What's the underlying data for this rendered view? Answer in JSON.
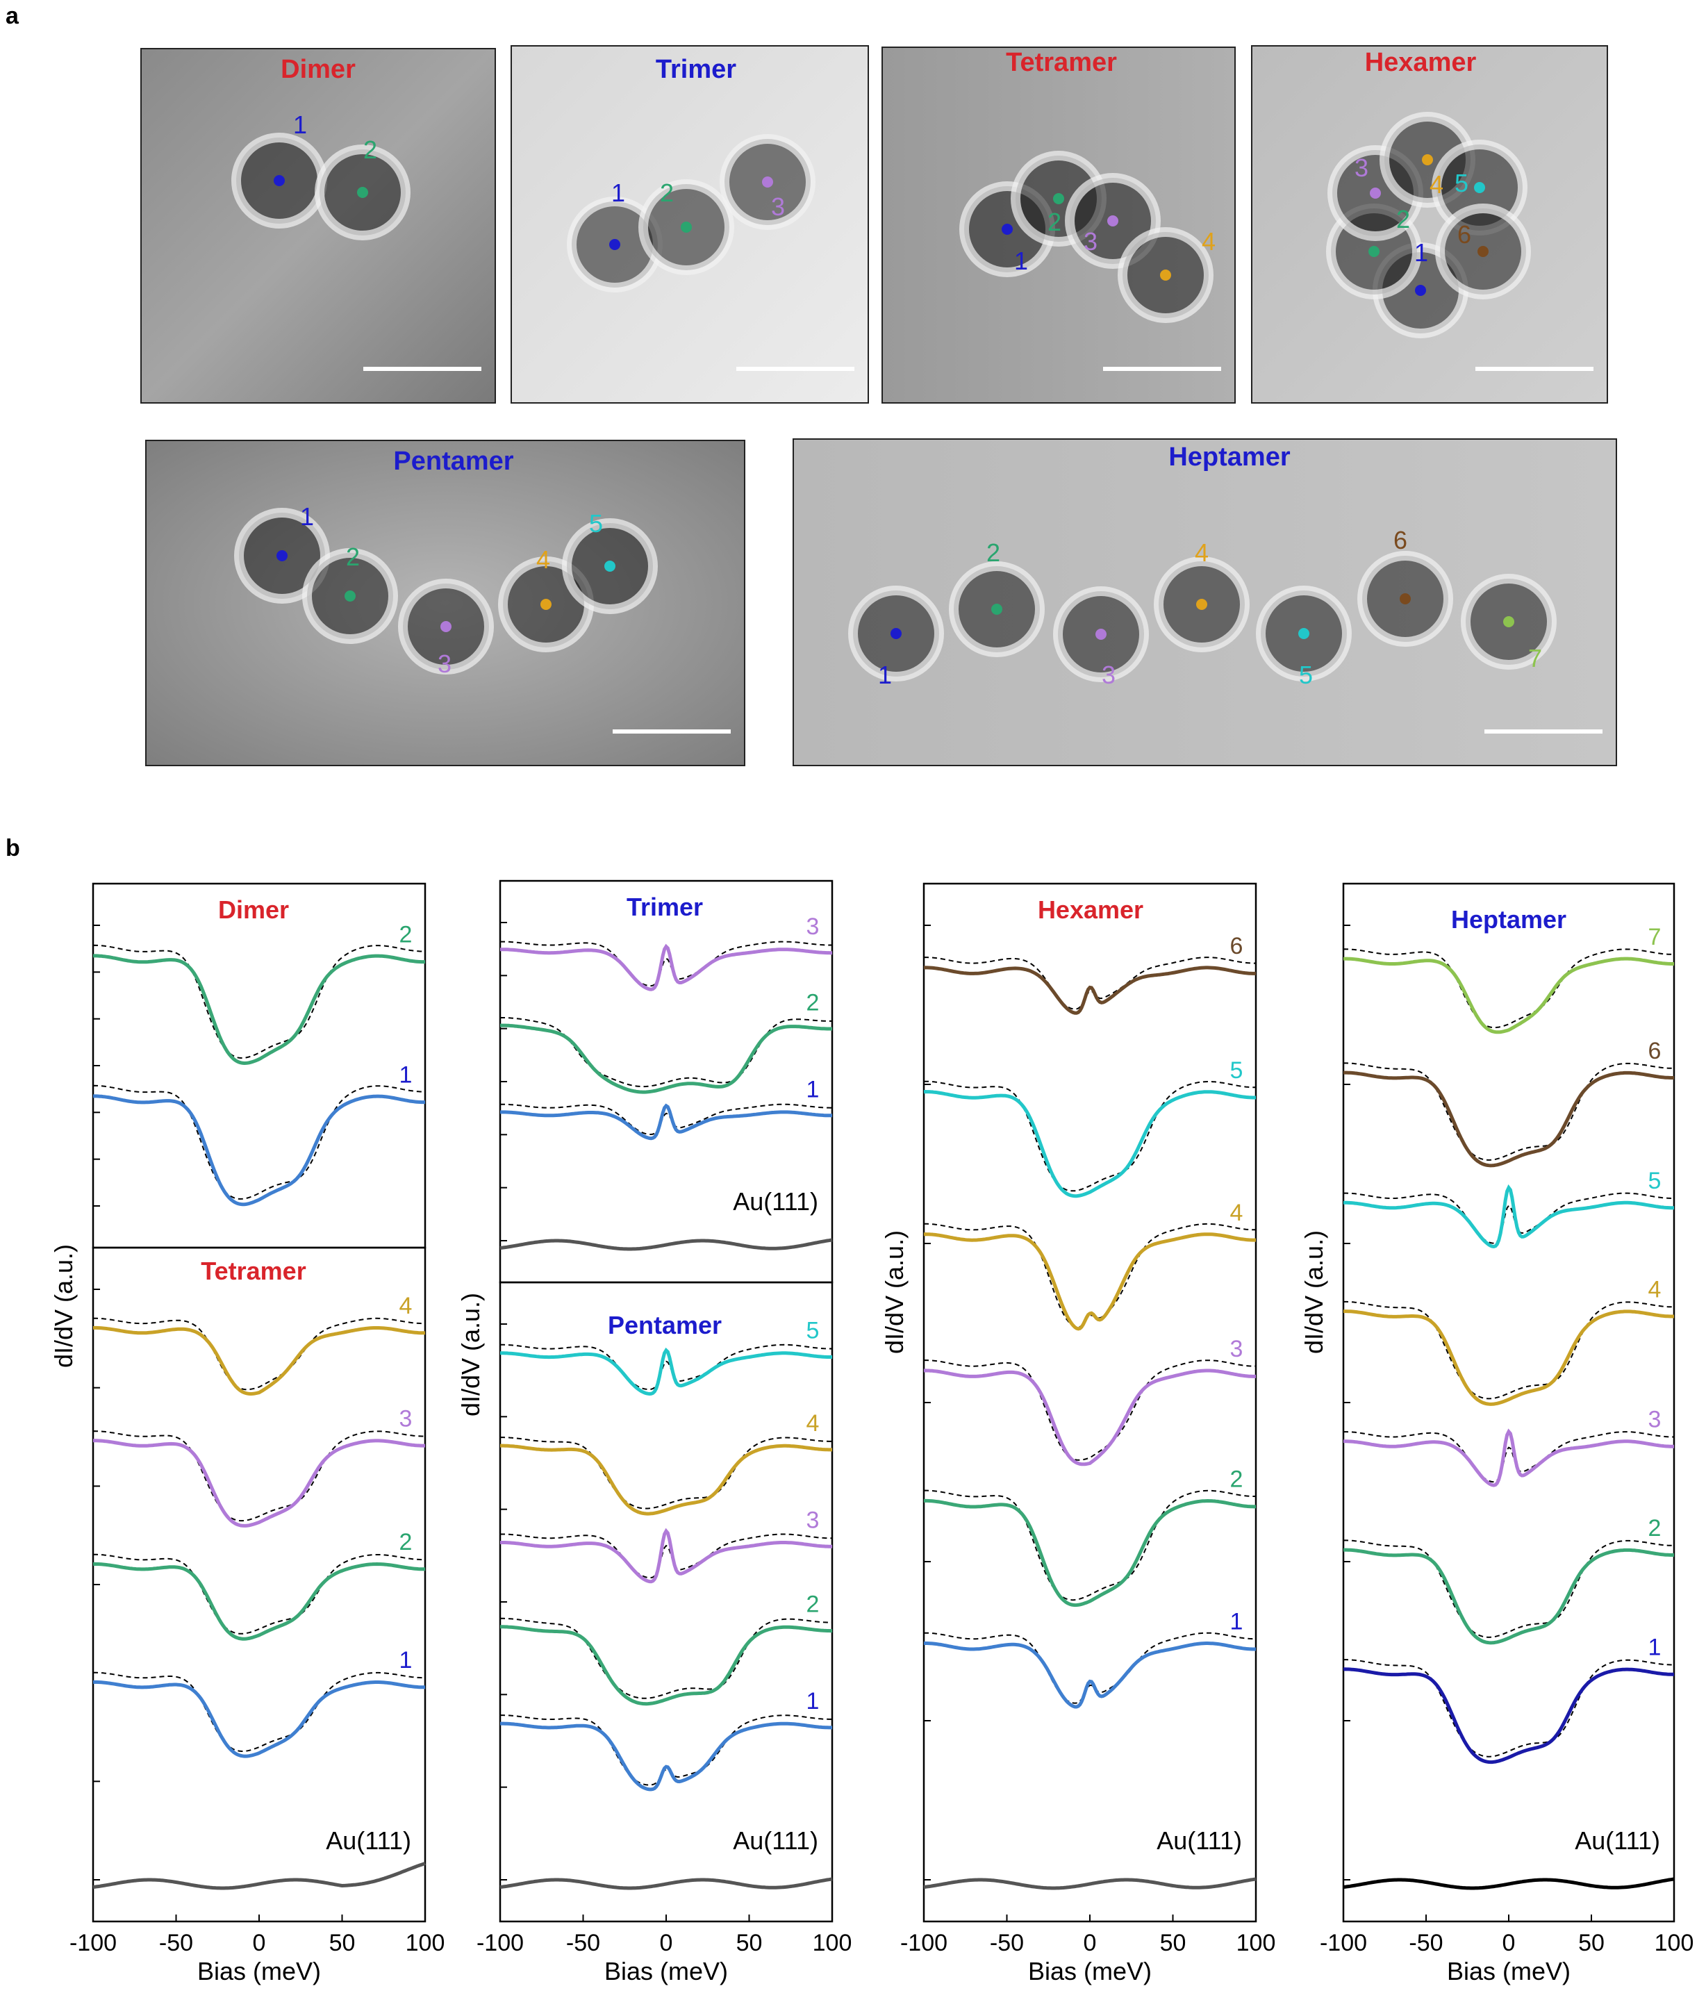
{
  "panel_labels": {
    "a": "a",
    "b": "b"
  },
  "colors": {
    "red": "#d9242b",
    "blue": "#1c1ccc",
    "navy": "#1a1aa8",
    "green": "#3aa776",
    "purple": "#b07ad8",
    "cyan": "#22c7c9",
    "gold": "#c9a227",
    "brown": "#6b4a2b",
    "lime": "#8dc34f",
    "steelblue": "#3f7fd0",
    "grey": "#555555",
    "black": "#000000",
    "site_colors": [
      "#1c1ccc",
      "#2aa56f",
      "#b07ad8",
      "#e0a21b",
      "#22c7c9",
      "#7a4a1e",
      "#8dc34f"
    ]
  },
  "stm_images": [
    {
      "title": "Dimer",
      "title_color": "#d9242b",
      "sites": [
        "1",
        "2"
      ]
    },
    {
      "title": "Trimer",
      "title_color": "#1c1ccc",
      "sites": [
        "1",
        "2",
        "3"
      ]
    },
    {
      "title": "Tetramer",
      "title_color": "#d9242b",
      "sites": [
        "1",
        "2",
        "3",
        "4"
      ]
    },
    {
      "title": "Hexamer",
      "title_color": "#d9242b",
      "sites": [
        "1",
        "2",
        "3",
        "4",
        "5",
        "6"
      ]
    },
    {
      "title": "Pentamer",
      "title_color": "#1c1ccc",
      "sites": [
        "1",
        "2",
        "3",
        "4",
        "5"
      ]
    },
    {
      "title": "Heptamer",
      "title_color": "#1c1ccc",
      "sites": [
        "1",
        "2",
        "3",
        "4",
        "5",
        "6",
        "7"
      ]
    }
  ],
  "chart_data": [
    {
      "type": "line",
      "title": "Dimer",
      "xlabel": "Bias (meV)",
      "ylabel": "dI/dV (a.u.)",
      "xlim": [
        -100,
        100
      ],
      "xticks": [
        "-100",
        "-50",
        "0",
        "50",
        "100"
      ],
      "series": [
        {
          "name": "1",
          "label_color": "#1c1ccc",
          "line_color": "#3f7fd0",
          "gap": 32,
          "floor": 0.1,
          "edge": 0.9,
          "zbp": 0
        },
        {
          "name": "2",
          "label_color": "#2aa56f",
          "line_color": "#3aa776",
          "gap": 30,
          "floor": 0.1,
          "edge": 0.9,
          "zbp": 0
        }
      ]
    },
    {
      "type": "line",
      "title": "Tetramer",
      "xlabel": "Bias (meV)",
      "ylabel": "dI/dV (a.u.)",
      "xlim": [
        -100,
        100
      ],
      "xticks": [
        "-100",
        "-50",
        "0",
        "50",
        "100"
      ],
      "reference": "Au(111)",
      "series": [
        {
          "name": "1",
          "label_color": "#1c1ccc",
          "line_color": "#3f7fd0",
          "gap": 28,
          "floor": 0.15,
          "edge": 0.8,
          "zbp": 0
        },
        {
          "name": "2",
          "label_color": "#2aa56f",
          "line_color": "#3aa776",
          "gap": 30,
          "floor": 0.15,
          "edge": 0.8,
          "zbp": 0
        },
        {
          "name": "3",
          "label_color": "#b07ad8",
          "line_color": "#b07ad8",
          "gap": 30,
          "floor": 0.1,
          "edge": 0.85,
          "zbp": 0
        },
        {
          "name": "4",
          "label_color": "#c9a227",
          "line_color": "#c9a227",
          "gap": 22,
          "floor": 0.2,
          "edge": 0.8,
          "zbp": 0
        }
      ]
    },
    {
      "type": "line",
      "title": "Trimer",
      "xlabel": "Bias (meV)",
      "ylabel": "dI/dV (a.u.)",
      "xlim": [
        -100,
        100
      ],
      "xticks": [
        "-100",
        "-50",
        "0",
        "50",
        "100"
      ],
      "reference": "Au(111)",
      "series": [
        {
          "name": "1",
          "label_color": "#1c1ccc",
          "line_color": "#3f7fd0",
          "gap": 20,
          "floor": 0.45,
          "edge": 0.8,
          "zbp": 0.45
        },
        {
          "name": "2",
          "label_color": "#2aa56f",
          "line_color": "#3aa776",
          "gap": 50,
          "floor": 0.05,
          "edge": 0.9,
          "zbp": 0
        },
        {
          "name": "3",
          "label_color": "#b07ad8",
          "line_color": "#b07ad8",
          "gap": 22,
          "floor": 0.3,
          "edge": 0.85,
          "zbp": 0.6
        }
      ]
    },
    {
      "type": "line",
      "title": "Pentamer",
      "xlabel": "Bias (meV)",
      "ylabel": "dI/dV (a.u.)",
      "xlim": [
        -100,
        100
      ],
      "xticks": [
        "-100",
        "-50",
        "0",
        "50",
        "100"
      ],
      "reference": "Au(111)",
      "series": [
        {
          "name": "1",
          "label_color": "#1c1ccc",
          "line_color": "#3f7fd0",
          "gap": 28,
          "floor": 0.1,
          "edge": 0.85,
          "zbp": 0.25
        },
        {
          "name": "2",
          "label_color": "#2aa56f",
          "line_color": "#3aa776",
          "gap": 40,
          "floor": 0.05,
          "edge": 0.9,
          "zbp": 0
        },
        {
          "name": "3",
          "label_color": "#b07ad8",
          "line_color": "#b07ad8",
          "gap": 22,
          "floor": 0.35,
          "edge": 0.8,
          "zbp": 0.6
        },
        {
          "name": "4",
          "label_color": "#c9a227",
          "line_color": "#c9a227",
          "gap": 35,
          "floor": 0.1,
          "edge": 0.85,
          "zbp": 0
        },
        {
          "name": "5",
          "label_color": "#22c7c9",
          "line_color": "#22c7c9",
          "gap": 25,
          "floor": 0.4,
          "edge": 0.85,
          "zbp": 0.5
        }
      ]
    },
    {
      "type": "line",
      "title": "Hexamer",
      "xlabel": "Bias (meV)",
      "ylabel": "dI/dV (a.u.)",
      "xlim": [
        -100,
        100
      ],
      "xticks": [
        "-100",
        "-50",
        "0",
        "50",
        "100"
      ],
      "reference": "Au(111)",
      "series": [
        {
          "name": "1",
          "label_color": "#1c1ccc",
          "line_color": "#3f7fd0",
          "gap": 22,
          "floor": 0.35,
          "edge": 0.85,
          "zbp": 0.2
        },
        {
          "name": "2",
          "label_color": "#2aa56f",
          "line_color": "#3aa776",
          "gap": 30,
          "floor": 0.1,
          "edge": 0.9,
          "zbp": 0
        },
        {
          "name": "3",
          "label_color": "#b07ad8",
          "line_color": "#b07ad8",
          "gap": 22,
          "floor": 0.1,
          "edge": 0.85,
          "zbp": 0
        },
        {
          "name": "4",
          "label_color": "#c9a227",
          "line_color": "#c9a227",
          "gap": 20,
          "floor": 0.05,
          "edge": 0.85,
          "zbp": 0.15
        },
        {
          "name": "5",
          "label_color": "#22c7c9",
          "line_color": "#22c7c9",
          "gap": 30,
          "floor": 0.1,
          "edge": 0.9,
          "zbp": 0
        },
        {
          "name": "6",
          "label_color": "#6b4a2b",
          "line_color": "#6b4a2b",
          "gap": 20,
          "floor": 0.45,
          "edge": 0.8,
          "zbp": 0.2
        }
      ]
    },
    {
      "type": "line",
      "title": "Heptamer",
      "xlabel": "Bias (meV)",
      "ylabel": "dI/dV (a.u.)",
      "xlim": [
        -100,
        100
      ],
      "xticks": [
        "-100",
        "-50",
        "0",
        "50",
        "100"
      ],
      "reference": "Au(111)",
      "series": [
        {
          "name": "1",
          "label_color": "#1c1ccc",
          "line_color": "#1a1aa8",
          "gap": 35,
          "floor": 0.1,
          "edge": 0.9,
          "zbp": 0
        },
        {
          "name": "2",
          "label_color": "#2aa56f",
          "line_color": "#3aa776",
          "gap": 35,
          "floor": 0.1,
          "edge": 0.9,
          "zbp": 0
        },
        {
          "name": "3",
          "label_color": "#b07ad8",
          "line_color": "#b07ad8",
          "gap": 20,
          "floor": 0.4,
          "edge": 0.8,
          "zbp": 0.5
        },
        {
          "name": "4",
          "label_color": "#c9a227",
          "line_color": "#c9a227",
          "gap": 35,
          "floor": 0.1,
          "edge": 0.9,
          "zbp": 0
        },
        {
          "name": "5",
          "label_color": "#22c7c9",
          "line_color": "#22c7c9",
          "gap": 20,
          "floor": 0.4,
          "edge": 0.8,
          "zbp": 0.55
        },
        {
          "name": "6",
          "label_color": "#6b4a2b",
          "line_color": "#6b4a2b",
          "gap": 35,
          "floor": 0.1,
          "edge": 0.9,
          "zbp": 0
        },
        {
          "name": "7",
          "label_color": "#8dc34f",
          "line_color": "#8dc34f",
          "gap": 25,
          "floor": 0.2,
          "edge": 0.85,
          "zbp": 0
        }
      ]
    }
  ]
}
